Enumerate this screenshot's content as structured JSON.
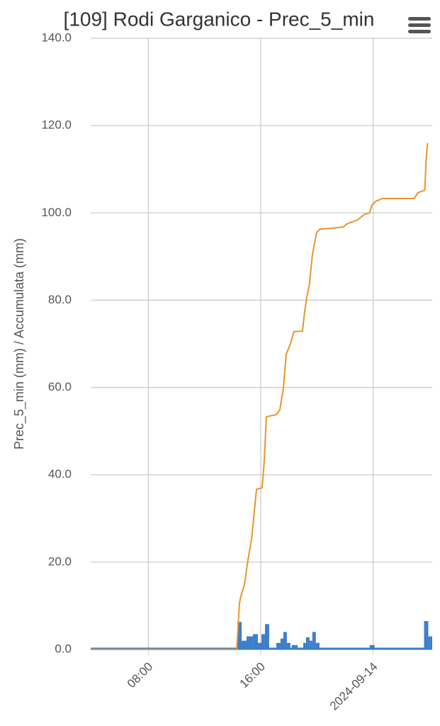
{
  "chart_data": {
    "type": "bar-line",
    "title": "[109] Rodi Garganico - Prec_5_min",
    "y_label": "Prec_5_min (mm) / Accumulata (mm)",
    "xlim": [
      3.9,
      28.2
    ],
    "xticks": [
      {
        "value": 8,
        "label": "08:00"
      },
      {
        "value": 16,
        "label": "16:00"
      },
      {
        "value": 24,
        "label": "2024-09-14"
      }
    ],
    "ylim": [
      0,
      140
    ],
    "yticks": [
      {
        "value": 0,
        "label": "0.0"
      },
      {
        "value": 20,
        "label": "20.0"
      },
      {
        "value": 40,
        "label": "40.0"
      },
      {
        "value": 60,
        "label": "60.0"
      },
      {
        "value": 80,
        "label": "80.0"
      },
      {
        "value": 100,
        "label": "100.0"
      },
      {
        "value": 120,
        "label": "120.0"
      },
      {
        "value": 140,
        "label": "140.0"
      }
    ],
    "grid": true,
    "series": [
      {
        "type": "bar",
        "color": "#3d7fc9",
        "x": [
          3.9,
          14.34,
          14.64,
          14.99,
          15.45,
          15.8,
          16.05,
          16.3,
          16.6,
          17.11,
          17.41,
          17.61,
          17.86,
          18.11,
          18.21,
          18.62,
          19.02,
          19.22,
          19.47,
          19.67,
          19.92,
          20.18,
          23.75,
          24.1,
          27.62,
          27.92,
          28.03
        ],
        "values": [
          0,
          6.3,
          2,
          3,
          3.5,
          1.5,
          3.5,
          5.8,
          0,
          1.5,
          2.5,
          4,
          1.5,
          0,
          1,
          0,
          1.5,
          2.8,
          2,
          4,
          1.5,
          0,
          1,
          0,
          6.5,
          3,
          3
        ]
      },
      {
        "type": "line",
        "color": "#e6962f",
        "x": [
          3.9,
          14.29,
          14.49,
          14.59,
          14.84,
          15.09,
          15.35,
          15.5,
          15.7,
          16.1,
          16.25,
          16.4,
          17.11,
          17.36,
          17.61,
          17.81,
          18.11,
          18.36,
          18.97,
          19.12,
          19.27,
          19.47,
          19.67,
          19.97,
          20.23,
          21.13,
          21.89,
          22.14,
          22.89,
          23.4,
          23.75,
          23.9,
          24.15,
          24.65,
          26.92,
          27.17,
          27.67,
          27.77,
          27.87
        ],
        "values": [
          0,
          0,
          10.7,
          12.3,
          14.8,
          20.5,
          25.3,
          30.2,
          36.7,
          37,
          43.2,
          53.3,
          53.8,
          54.9,
          59.8,
          67.6,
          70,
          72.8,
          72.9,
          77.3,
          80.6,
          83.8,
          90.3,
          95.5,
          96.3,
          96.5,
          96.8,
          97.5,
          98.4,
          99.7,
          100,
          101.7,
          102.6,
          103.3,
          103.3,
          104.6,
          105.2,
          112.2,
          116
        ]
      }
    ]
  }
}
